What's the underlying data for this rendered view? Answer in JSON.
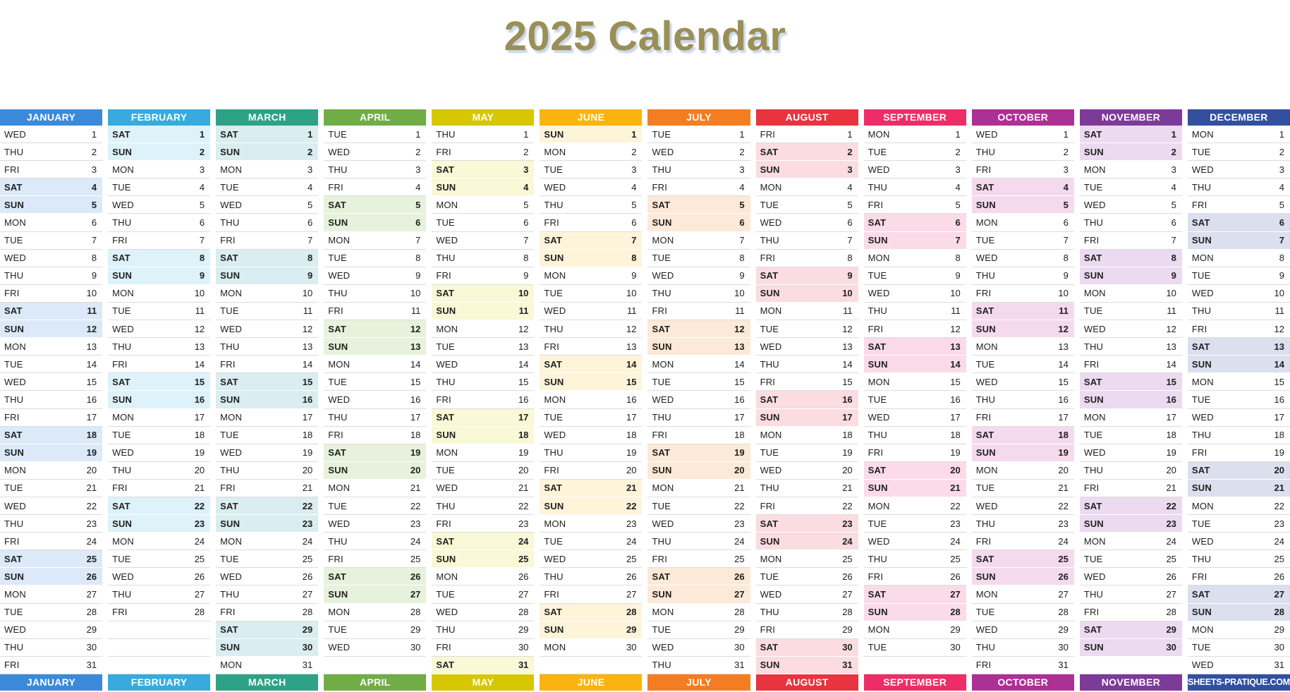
{
  "title": "2025 Calendar",
  "title_color": "#9a8f55",
  "title_shadow_color": "#c9d5eb",
  "row_border_color": "#dcdcdc",
  "weekend_days": [
    "SAT",
    "SUN"
  ],
  "rows_per_month": 31,
  "brand": "SHEETS-PRATIQUE.COM",
  "months": [
    {
      "name": "JANUARY",
      "footer_label": "JANUARY",
      "footer_is_brand": false,
      "color": "#3b8ad9",
      "tint": "#dbe9f8",
      "days": [
        "WED",
        "THU",
        "FRI",
        "SAT",
        "SUN",
        "MON",
        "TUE",
        "WED",
        "THU",
        "FRI",
        "SAT",
        "SUN",
        "MON",
        "TUE",
        "WED",
        "THU",
        "FRI",
        "SAT",
        "SUN",
        "MON",
        "TUE",
        "WED",
        "THU",
        "FRI",
        "SAT",
        "SUN",
        "MON",
        "TUE",
        "WED",
        "THU",
        "FRI"
      ]
    },
    {
      "name": "FEBRUARY",
      "footer_label": "FEBRUARY",
      "footer_is_brand": false,
      "color": "#37abde",
      "tint": "#def2fa",
      "days": [
        "SAT",
        "SUN",
        "MON",
        "TUE",
        "WED",
        "THU",
        "FRI",
        "SAT",
        "SUN",
        "MON",
        "TUE",
        "WED",
        "THU",
        "FRI",
        "SAT",
        "SUN",
        "MON",
        "TUE",
        "WED",
        "THU",
        "FRI",
        "SAT",
        "SUN",
        "MON",
        "TUE",
        "WED",
        "THU",
        "FRI"
      ]
    },
    {
      "name": "MARCH",
      "footer_label": "MARCH",
      "footer_is_brand": false,
      "color": "#2ea287",
      "tint": "#daedf0",
      "days": [
        "SAT",
        "SUN",
        "MON",
        "TUE",
        "WED",
        "THU",
        "FRI",
        "SAT",
        "SUN",
        "MON",
        "TUE",
        "WED",
        "THU",
        "FRI",
        "SAT",
        "SUN",
        "MON",
        "TUE",
        "WED",
        "THU",
        "FRI",
        "SAT",
        "SUN",
        "MON",
        "TUE",
        "WED",
        "THU",
        "FRI",
        "SAT",
        "SUN",
        "MON"
      ]
    },
    {
      "name": "APRIL",
      "footer_label": "APRIL",
      "footer_is_brand": false,
      "color": "#70ad46",
      "tint": "#e7f2dc",
      "days": [
        "TUE",
        "WED",
        "THU",
        "FRI",
        "SAT",
        "SUN",
        "MON",
        "TUE",
        "WED",
        "THU",
        "FRI",
        "SAT",
        "SUN",
        "MON",
        "TUE",
        "WED",
        "THU",
        "FRI",
        "SAT",
        "SUN",
        "MON",
        "TUE",
        "WED",
        "THU",
        "FRI",
        "SAT",
        "SUN",
        "MON",
        "TUE",
        "WED"
      ]
    },
    {
      "name": "MAY",
      "footer_label": "MAY",
      "footer_is_brand": false,
      "color": "#d6c702",
      "tint": "#f9f8d7",
      "days": [
        "THU",
        "FRI",
        "SAT",
        "SUN",
        "MON",
        "TUE",
        "WED",
        "THU",
        "FRI",
        "SAT",
        "SUN",
        "MON",
        "TUE",
        "WED",
        "THU",
        "FRI",
        "SAT",
        "SUN",
        "MON",
        "TUE",
        "WED",
        "THU",
        "FRI",
        "SAT",
        "SUN",
        "MON",
        "TUE",
        "WED",
        "THU",
        "FRI",
        "SAT"
      ]
    },
    {
      "name": "JUNE",
      "footer_label": "JUNE",
      "footer_is_brand": false,
      "color": "#fbb40e",
      "tint": "#fdf4da",
      "days": [
        "SUN",
        "MON",
        "TUE",
        "WED",
        "THU",
        "FRI",
        "SAT",
        "SUN",
        "MON",
        "TUE",
        "WED",
        "THU",
        "FRI",
        "SAT",
        "SUN",
        "MON",
        "TUE",
        "WED",
        "THU",
        "FRI",
        "SAT",
        "SUN",
        "MON",
        "TUE",
        "WED",
        "THU",
        "FRI",
        "SAT",
        "SUN",
        "MON"
      ]
    },
    {
      "name": "JULY",
      "footer_label": "JULY",
      "footer_is_brand": false,
      "color": "#f57d21",
      "tint": "#fde9d7",
      "days": [
        "TUE",
        "WED",
        "THU",
        "FRI",
        "SAT",
        "SUN",
        "MON",
        "TUE",
        "WED",
        "THU",
        "FRI",
        "SAT",
        "SUN",
        "MON",
        "TUE",
        "WED",
        "THU",
        "FRI",
        "SAT",
        "SUN",
        "MON",
        "TUE",
        "WED",
        "THU",
        "FRI",
        "SAT",
        "SUN",
        "MON",
        "TUE",
        "WED",
        "THU"
      ]
    },
    {
      "name": "AUGUST",
      "footer_label": "AUGUST",
      "footer_is_brand": false,
      "color": "#e9333f",
      "tint": "#fbdce1",
      "days": [
        "FRI",
        "SAT",
        "SUN",
        "MON",
        "TUE",
        "WED",
        "THU",
        "FRI",
        "SAT",
        "SUN",
        "MON",
        "TUE",
        "WED",
        "THU",
        "FRI",
        "SAT",
        "SUN",
        "MON",
        "TUE",
        "WED",
        "THU",
        "FRI",
        "SAT",
        "SUN",
        "MON",
        "TUE",
        "WED",
        "THU",
        "FRI",
        "SAT",
        "SUN"
      ]
    },
    {
      "name": "SEPTEMBER",
      "footer_label": "SEPTEMBER",
      "footer_is_brand": false,
      "color": "#ee2d68",
      "tint": "#fbdbe8",
      "days": [
        "MON",
        "TUE",
        "WED",
        "THU",
        "FRI",
        "SAT",
        "SUN",
        "MON",
        "TUE",
        "WED",
        "THU",
        "FRI",
        "SAT",
        "SUN",
        "MON",
        "TUE",
        "WED",
        "THU",
        "FRI",
        "SAT",
        "SUN",
        "MON",
        "TUE",
        "WED",
        "THU",
        "FRI",
        "SAT",
        "SUN",
        "MON",
        "TUE"
      ]
    },
    {
      "name": "OCTOBER",
      "footer_label": "OCTOBER",
      "footer_is_brand": false,
      "color": "#ad3095",
      "tint": "#f5daee",
      "days": [
        "WED",
        "THU",
        "FRI",
        "SAT",
        "SUN",
        "MON",
        "TUE",
        "WED",
        "THU",
        "FRI",
        "SAT",
        "SUN",
        "MON",
        "TUE",
        "WED",
        "THU",
        "FRI",
        "SAT",
        "SUN",
        "MON",
        "TUE",
        "WED",
        "THU",
        "FRI",
        "SAT",
        "SUN",
        "MON",
        "TUE",
        "WED",
        "THU",
        "FRI"
      ]
    },
    {
      "name": "NOVEMBER",
      "footer_label": "NOVEMBER",
      "footer_is_brand": false,
      "color": "#7c3a99",
      "tint": "#ebdaf0",
      "days": [
        "SAT",
        "SUN",
        "MON",
        "TUE",
        "WED",
        "THU",
        "FRI",
        "SAT",
        "SUN",
        "MON",
        "TUE",
        "WED",
        "THU",
        "FRI",
        "SAT",
        "SUN",
        "MON",
        "TUE",
        "WED",
        "THU",
        "FRI",
        "SAT",
        "SUN",
        "MON",
        "TUE",
        "WED",
        "THU",
        "FRI",
        "SAT",
        "SUN"
      ]
    },
    {
      "name": "DECEMBER",
      "footer_label": "SHEETS-PRATIQUE.COM",
      "footer_is_brand": true,
      "color": "#32509f",
      "tint": "#dcdfee",
      "days": [
        "MON",
        "TUE",
        "WED",
        "THU",
        "FRI",
        "SAT",
        "SUN",
        "MON",
        "TUE",
        "WED",
        "THU",
        "FRI",
        "SAT",
        "SUN",
        "MON",
        "TUE",
        "WED",
        "THU",
        "FRI",
        "SAT",
        "SUN",
        "MON",
        "TUE",
        "WED",
        "THU",
        "FRI",
        "SAT",
        "SUN",
        "MON",
        "TUE",
        "WED"
      ]
    }
  ]
}
